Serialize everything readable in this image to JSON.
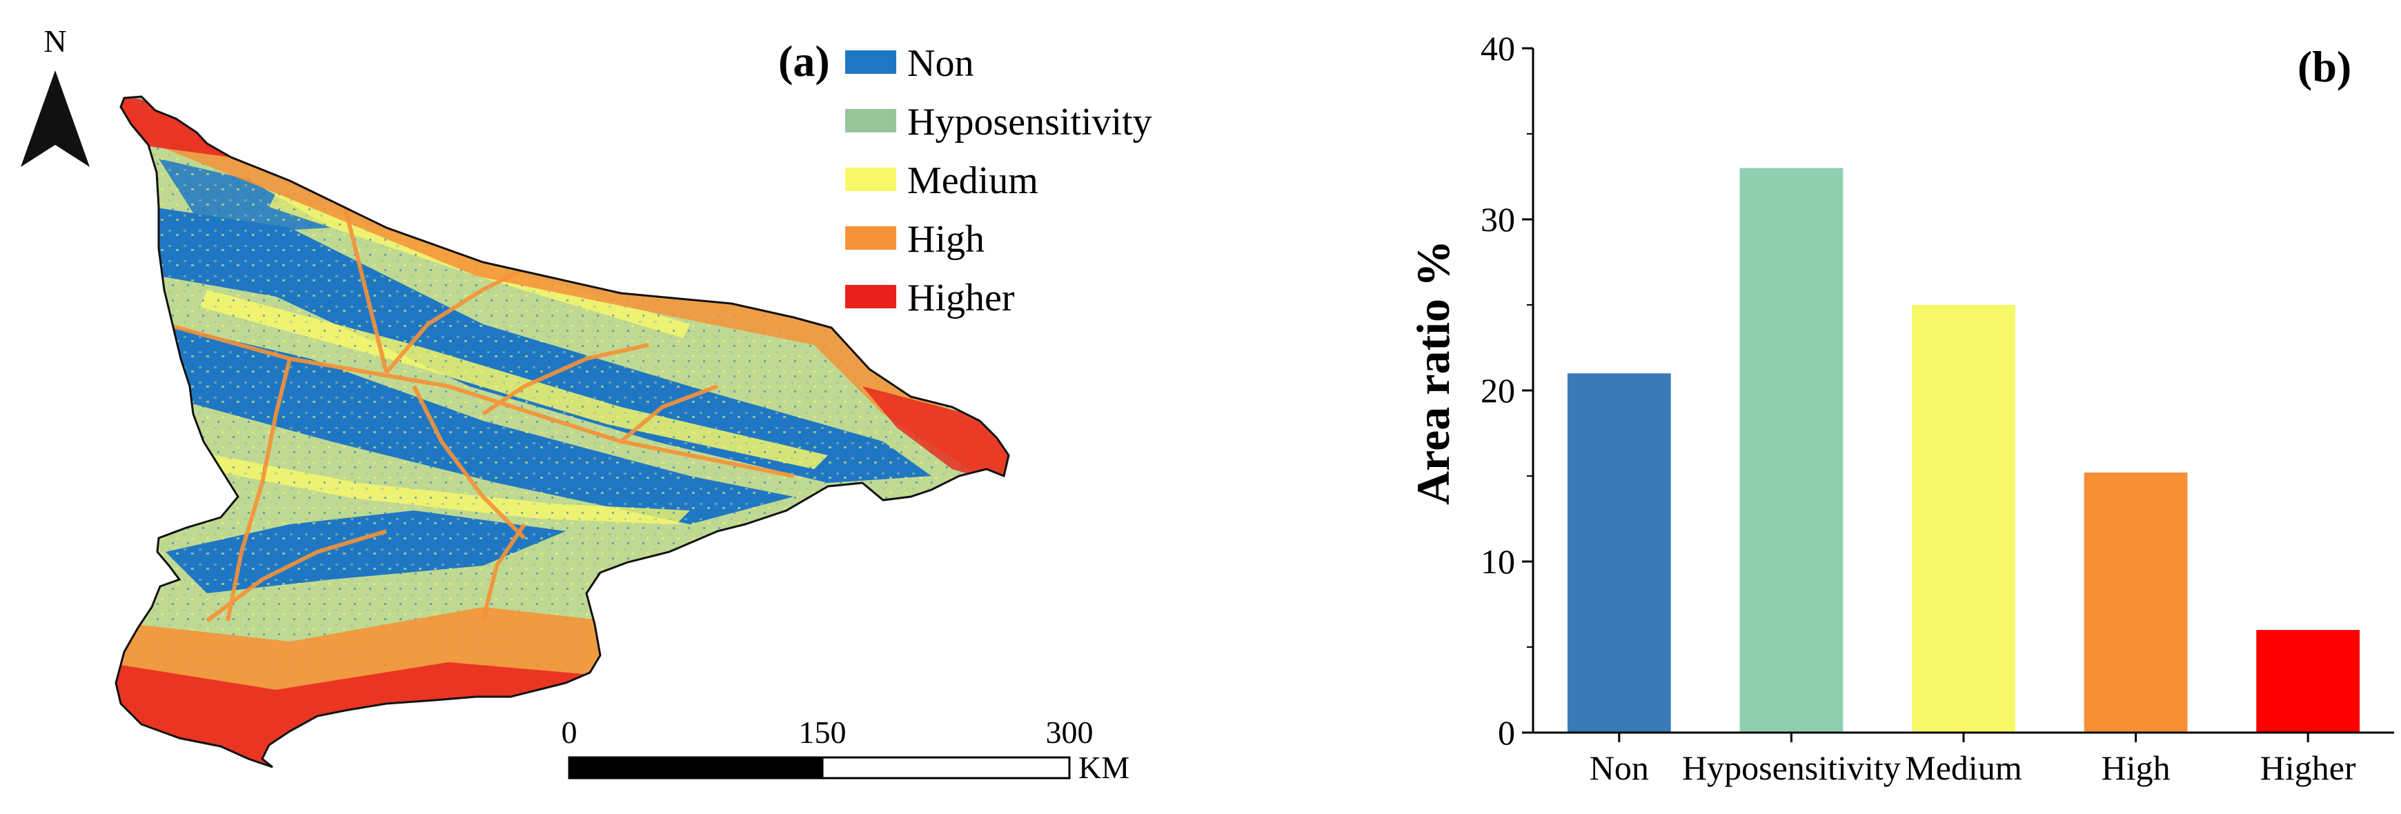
{
  "map": {
    "panel_label": "(a)",
    "north_label": "N",
    "legend": [
      {
        "label": "Non",
        "color": "#1f77c4"
      },
      {
        "label": "Hyposensitivity",
        "color": "#98c49a"
      },
      {
        "label": "Medium",
        "color": "#f7f76a"
      },
      {
        "label": "High",
        "color": "#f59238"
      },
      {
        "label": "Higher",
        "color": "#e8231d"
      }
    ],
    "scale_bar": {
      "ticks": [
        "0",
        "150",
        "300"
      ],
      "unit": "KM"
    }
  },
  "chart_data": {
    "type": "bar",
    "panel_label": "(b)",
    "categories": [
      "Non",
      "Hyposensitivity",
      "Medium",
      "High",
      "Higher"
    ],
    "values": [
      21,
      33,
      25,
      15.2,
      6
    ],
    "colors": [
      "#3a7bb7",
      "#8ecfaf",
      "#f7f768",
      "#f68e34",
      "#ff0000"
    ],
    "xlabel": "",
    "ylabel": "Area ratio %",
    "ylim": [
      0,
      40
    ],
    "yticks": [
      "0",
      "10",
      "20",
      "30",
      "40"
    ],
    "grid": false
  }
}
